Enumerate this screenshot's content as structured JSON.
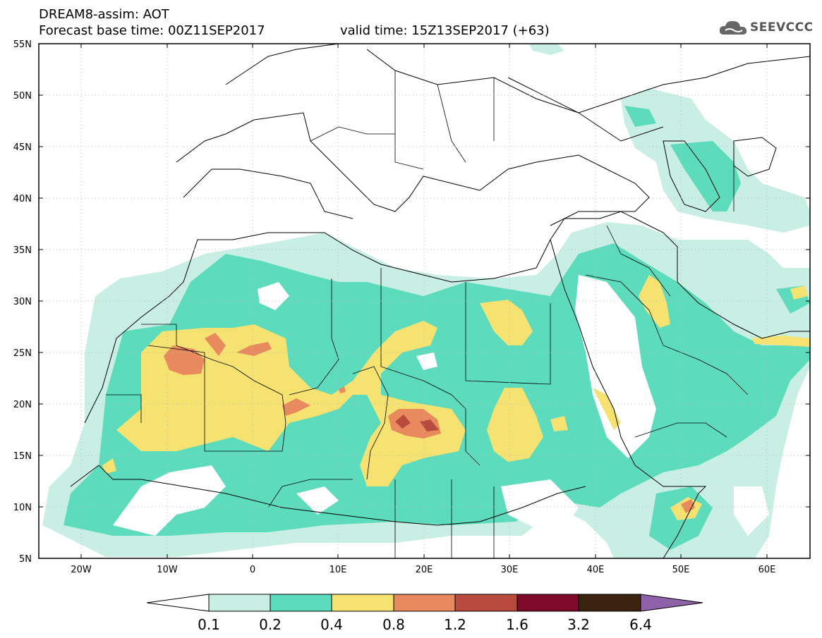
{
  "title": {
    "line1": "DREAM8-assim: AOT",
    "line2": "Forecast base time: 00Z11SEP2017",
    "valid": "valid time: 15Z13SEP2017 (+63)"
  },
  "logo": {
    "text": "SEEVCCC",
    "icon": "cloud-icon"
  },
  "map": {
    "lat_labels": [
      "55N",
      "50N",
      "45N",
      "40N",
      "35N",
      "30N",
      "25N",
      "20N",
      "15N",
      "10N",
      "5N"
    ],
    "lon_labels": [
      "20W",
      "10W",
      "0",
      "10E",
      "20E",
      "30E",
      "40E",
      "50E",
      "60E"
    ],
    "lon_range": [
      -25,
      65
    ],
    "lat_range": [
      5,
      55
    ],
    "grid": "dotted"
  },
  "colorbar": {
    "labels": [
      "0.1",
      "0.2",
      "0.4",
      "0.8",
      "1.2",
      "1.6",
      "3.2",
      "6.4"
    ],
    "colors": [
      "#c9eee4",
      "#5cdcbc",
      "#f5e271",
      "#e88a5e",
      "#b84b3e",
      "#7d0a2b",
      "#3a230f",
      "#8e62a8"
    ]
  }
}
